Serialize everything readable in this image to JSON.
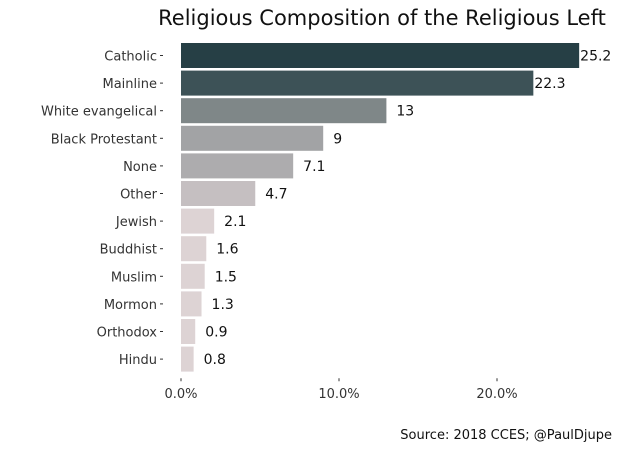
{
  "chart_data": {
    "type": "bar",
    "orientation": "horizontal",
    "title": "Religious Composition of the Religious Left",
    "caption": "Source: 2018 CCES; @PaulDjupe",
    "xlabel": "",
    "ylabel": "",
    "xlim": [
      0,
      25.2
    ],
    "xticks": [
      0,
      10,
      20
    ],
    "xtick_labels": [
      "0.0%",
      "10.0%",
      "20.0%"
    ],
    "grid": false,
    "categories": [
      "Catholic",
      "Mainline",
      "White evangelical",
      "Black Protestant",
      "None",
      "Other",
      "Jewish",
      "Buddhist",
      "Muslim",
      "Mormon",
      "Orthodox",
      "Hindu"
    ],
    "values": [
      25.2,
      22.3,
      13,
      9,
      7.1,
      4.7,
      2.1,
      1.6,
      1.5,
      1.3,
      0.9,
      0.8
    ],
    "data_labels": [
      "25.2",
      "22.3",
      "13",
      "9",
      "7.1",
      "4.7",
      "2.1",
      "1.6",
      "1.5",
      "1.3",
      "0.9",
      "0.8"
    ],
    "colors": [
      "#263f45",
      "#3d5257",
      "#7f8788",
      "#a2a3a5",
      "#adacae",
      "#c5bfc1",
      "#ddd3d4",
      "#ddd3d4",
      "#ddd3d4",
      "#ddd3d4",
      "#ddd3d4",
      "#ddd3d4"
    ]
  }
}
